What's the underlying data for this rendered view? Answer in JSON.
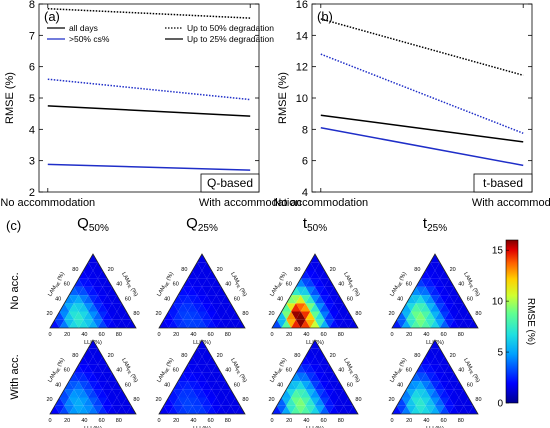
{
  "chart_data": [
    {
      "type": "line",
      "panel_label": "(a)",
      "corner_label": "Q-based",
      "ylabel": "RMSE (%)",
      "ylim": [
        2,
        8
      ],
      "yticks": [
        "2",
        "3",
        "4",
        "5",
        "6",
        "7",
        "8"
      ],
      "categories": [
        "No accommodation",
        "With accommodation"
      ],
      "legend": [
        {
          "label": "all days",
          "color": "#000000",
          "dash": "solid"
        },
        {
          "label": ">50% cs%",
          "color": "#1f2ec8",
          "dash": "solid"
        },
        {
          "label": "Up to 50% degradation",
          "color": "#000000",
          "dash": "dotted"
        },
        {
          "label": "Up to 25% degradation",
          "color": "#000000",
          "dash": "solid"
        }
      ],
      "series": [
        {
          "group": "all days",
          "color": "#000000",
          "dash": "dotted",
          "values": [
            7.85,
            7.55
          ]
        },
        {
          "group": ">50% cs%",
          "color": "#1f2ec8",
          "dash": "dotted",
          "values": [
            5.6,
            4.95
          ]
        },
        {
          "group": "all days",
          "color": "#000000",
          "dash": "solid",
          "values": [
            4.75,
            4.42
          ]
        },
        {
          "group": ">50% cs%",
          "color": "#1f2ec8",
          "dash": "solid",
          "values": [
            2.88,
            2.7
          ]
        }
      ]
    },
    {
      "type": "line",
      "panel_label": "(b)",
      "corner_label": "t-based",
      "ylabel": "RMSE (%)",
      "ylim": [
        4,
        16
      ],
      "yticks": [
        "4",
        "6",
        "8",
        "10",
        "12",
        "14",
        "16"
      ],
      "categories": [
        "No accommodation",
        "With accommodation"
      ],
      "series": [
        {
          "group": "all days",
          "color": "#000000",
          "dash": "dotted",
          "values": [
            15.05,
            11.45
          ]
        },
        {
          "group": ">50% cs%",
          "color": "#1f2ec8",
          "dash": "dotted",
          "values": [
            12.8,
            7.75
          ]
        },
        {
          "group": "all days",
          "color": "#000000",
          "dash": "solid",
          "values": [
            8.9,
            7.2
          ]
        },
        {
          "group": ">50% cs%",
          "color": "#1f2ec8",
          "dash": "solid",
          "values": [
            8.1,
            5.7
          ]
        }
      ]
    },
    {
      "type": "heatmap",
      "panel_label": "(c)",
      "columns": [
        {
          "main": "Q",
          "sub": "50%"
        },
        {
          "main": "Q",
          "sub": "25%"
        },
        {
          "main": "t",
          "sub": "50%"
        },
        {
          "main": "t",
          "sub": "25%"
        }
      ],
      "rows": [
        "No acc.",
        "With acc."
      ],
      "left_axis": "LAM",
      "left_axis_sub": "NE",
      "right_axis": "LAM",
      "right_axis_sub": "PE",
      "bottom_axis": "LLI (%)",
      "tick_labels": [
        "0",
        "20",
        "40",
        "60",
        "80"
      ],
      "colorbar": {
        "label": "RMSE (%)",
        "range": [
          0,
          16
        ],
        "ticks": [
          "0",
          "5",
          "10",
          "15"
        ]
      },
      "peak_rmse": [
        [
          7,
          3,
          16,
          9
        ],
        [
          5,
          3,
          9,
          7
        ]
      ]
    }
  ]
}
